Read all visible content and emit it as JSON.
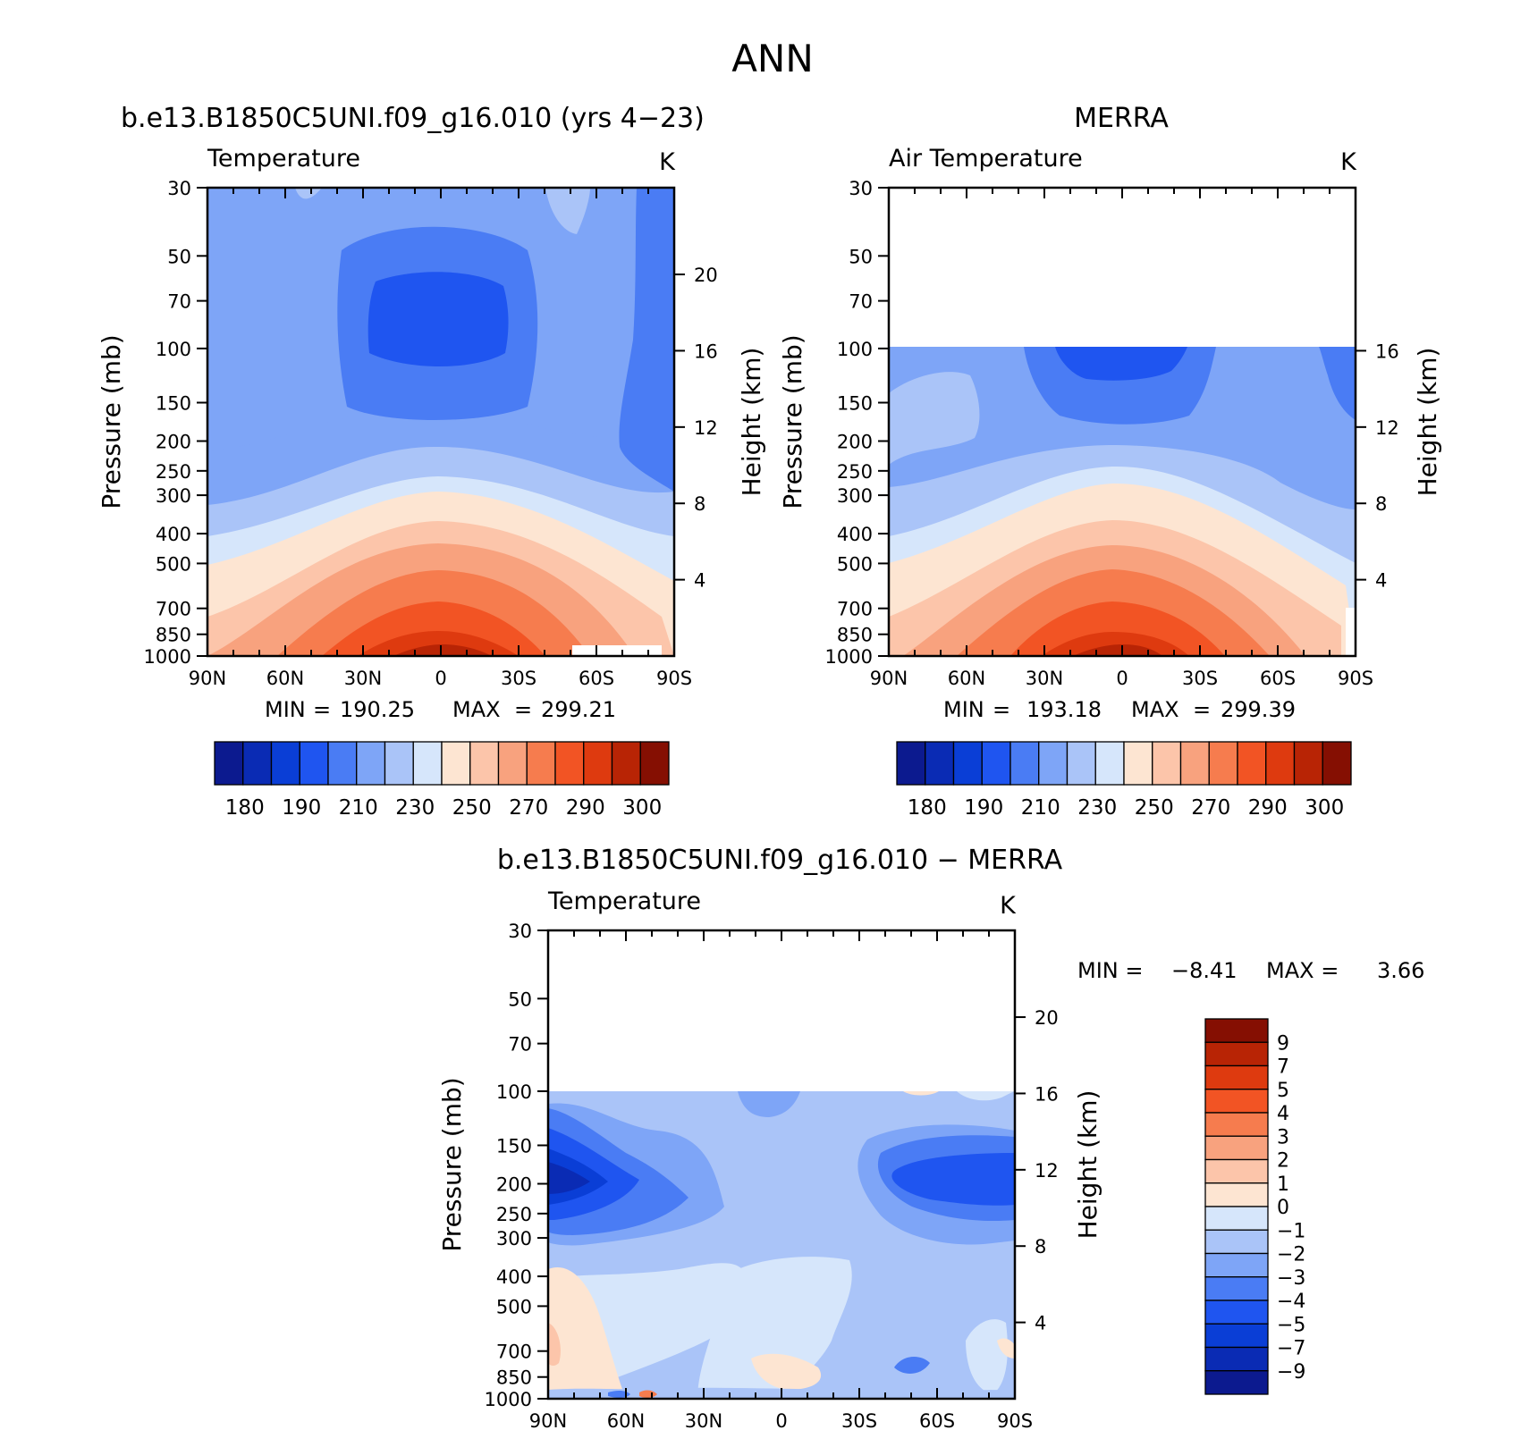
{
  "figure": {
    "title": "ANN",
    "shared": {
      "x_ticks": [
        "90N",
        "60N",
        "30N",
        "0",
        "30S",
        "60S",
        "90S"
      ],
      "pressure_ticks": [
        "30",
        "50",
        "70",
        "100",
        "150",
        "200",
        "250",
        "300",
        "400",
        "500",
        "700",
        "850",
        "1000"
      ],
      "height_ticks": [
        "20",
        "16",
        "12",
        "8",
        "4"
      ],
      "ylabel": "Pressure (mb)",
      "y2label": "Height (km)",
      "units": "K"
    }
  },
  "chart_data": [
    {
      "type": "heatmap",
      "panel": "model",
      "title": "b.e13.B1850C5UNI.f09_g16.010 (yrs 4−23)",
      "subtitle": "Temperature",
      "units": "K",
      "stats": {
        "min_label": "MIN",
        "min": "190.25",
        "max_label": "MAX",
        "max": "299.21"
      },
      "ylim": [
        30,
        1000
      ],
      "height_ticks": [
        "20",
        "16",
        "12",
        "8",
        "4"
      ],
      "colorbar": {
        "labels": [
          "180",
          "190",
          "210",
          "230",
          "250",
          "270",
          "290",
          "300"
        ],
        "colors": [
          "#0c1a8f",
          "#0a2bb4",
          "#0a3ed6",
          "#1f55f0",
          "#4a7cf4",
          "#7ea5f7",
          "#aac4f8",
          "#d6e6fb",
          "#fde5d2",
          "#fcc5aa",
          "#f8a27e",
          "#f67c4e",
          "#f25424",
          "#de3a0f",
          "#b82405",
          "#850f02"
        ]
      }
    },
    {
      "type": "heatmap",
      "panel": "obs",
      "title": "MERRA",
      "subtitle": "Air Temperature",
      "units": "K",
      "stats": {
        "min_label": "MIN",
        "min": "193.18",
        "max_label": "MAX",
        "max": "299.39"
      },
      "ylim": [
        30,
        1000
      ],
      "data_top_mb": 100,
      "height_ticks": [
        "16",
        "12",
        "8",
        "4"
      ],
      "colorbar": {
        "labels": [
          "180",
          "190",
          "210",
          "230",
          "250",
          "270",
          "290",
          "300"
        ],
        "colors": [
          "#0c1a8f",
          "#0a2bb4",
          "#0a3ed6",
          "#1f55f0",
          "#4a7cf4",
          "#7ea5f7",
          "#aac4f8",
          "#d6e6fb",
          "#fde5d2",
          "#fcc5aa",
          "#f8a27e",
          "#f67c4e",
          "#f25424",
          "#de3a0f",
          "#b82405",
          "#850f02"
        ]
      }
    },
    {
      "type": "heatmap",
      "panel": "diff",
      "title": "b.e13.B1850C5UNI.f09_g16.010 − MERRA",
      "subtitle": "Temperature",
      "units": "K",
      "stats": {
        "min_label": "MIN =",
        "min": "−8.41",
        "max_label": "MAX =",
        "max": "3.66"
      },
      "ylim": [
        30,
        1000
      ],
      "data_top_mb": 100,
      "height_ticks": [
        "20",
        "16",
        "12",
        "8",
        "4"
      ],
      "colorbar": {
        "labels": [
          "9",
          "7",
          "5",
          "4",
          "3",
          "2",
          "1",
          "0",
          "−1",
          "−2",
          "−3",
          "−4",
          "−5",
          "−7",
          "−9"
        ],
        "colors": [
          "#850f02",
          "#b82405",
          "#de3a0f",
          "#f25424",
          "#f67c4e",
          "#f8a27e",
          "#fcc5aa",
          "#fde5d2",
          "#d6e6fb",
          "#aac4f8",
          "#7ea5f7",
          "#4a7cf4",
          "#1f55f0",
          "#0a3ed6",
          "#0a2bb4",
          "#0c1a8f"
        ]
      }
    }
  ]
}
